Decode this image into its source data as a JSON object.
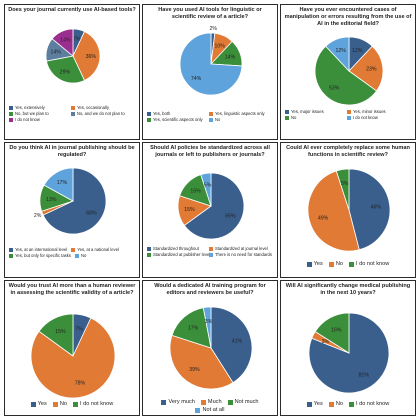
{
  "chart_data": [
    {
      "type": "pie",
      "title": "Does your journal currently use AI-based tools?",
      "categories": [
        "Yes, extensively",
        "Yes, occasionally",
        "No, but we plan to",
        "No, and we do not plan to",
        "I do not know"
      ],
      "values": [
        7,
        36,
        29,
        14,
        14
      ],
      "labels": [
        "7%",
        "36%",
        "29%",
        "14%",
        "14%"
      ],
      "colors": [
        "#3a5f8c",
        "#e07a35",
        "#3b8f3b",
        "#5e7ea0",
        "#9b2f8f"
      ],
      "legend_placement": "bottom"
    },
    {
      "type": "pie",
      "title": "Have you used AI tools for linguistic or scientific review of a article?",
      "categories": [
        "Yes, both",
        "Yes, linguistic aspects only",
        "Yes, scientific aspects only",
        "No"
      ],
      "values": [
        2,
        10,
        14,
        74
      ],
      "labels": [
        "2%",
        "10%",
        "14%",
        "74%"
      ],
      "colors": [
        "#3a5f8c",
        "#e07a35",
        "#3b8f3b",
        "#5fa3dc"
      ],
      "legend_placement": "bottom"
    },
    {
      "type": "pie",
      "title": "Have you ever encountered cases of manipulation or errors resulting from the use of AI in the editorial field?",
      "categories": [
        "Yes, major issues",
        "Yes, minor issues",
        "No",
        "I do not know"
      ],
      "values": [
        12,
        23,
        53,
        12
      ],
      "labels": [
        "12%",
        "23%",
        "53%",
        "12%"
      ],
      "colors": [
        "#3a5f8c",
        "#e07a35",
        "#3b8f3b",
        "#5fa3dc"
      ],
      "legend_placement": "bottom"
    },
    {
      "type": "pie",
      "title": "Do you think AI in journal publishing should be regulated?",
      "categories": [
        "Yes, at an international level",
        "Yes, at a national level",
        "Yes, but only for specific tasks",
        "No"
      ],
      "values": [
        68,
        2,
        13,
        17
      ],
      "labels": [
        "68%",
        "2%",
        "13%",
        "17%"
      ],
      "colors": [
        "#3a5f8c",
        "#e07a35",
        "#3b8f3b",
        "#5fa3dc"
      ],
      "legend_placement": "bottom"
    },
    {
      "type": "pie",
      "title": "Should AI policies be standardized across all journals or left to publishers or journals?",
      "categories": [
        "Standardized throughout",
        "Standardized at journal level",
        "Standardized at publisher level",
        "There is no need for standards"
      ],
      "values": [
        65,
        15,
        15,
        5
      ],
      "labels": [
        "65%",
        "15%",
        "15%",
        "5%"
      ],
      "colors": [
        "#3a5f8c",
        "#e07a35",
        "#3b8f3b",
        "#5fa3dc"
      ],
      "legend_placement": "bottom"
    },
    {
      "type": "pie",
      "title": "Could AI ever completely replace some human functions in scientific review?",
      "categories": [
        "Yes",
        "No",
        "I do not know"
      ],
      "values": [
        46,
        49,
        5
      ],
      "labels": [
        "46%",
        "49%",
        "5%"
      ],
      "colors": [
        "#3a5f8c",
        "#e07a35",
        "#3b8f3b"
      ],
      "legend_placement": "bottom"
    },
    {
      "type": "pie",
      "title": "Would you trust AI more than a human reviewer in assessing the scientific validity of a article?",
      "categories": [
        "Yes",
        "No",
        "I do not know"
      ],
      "values": [
        7,
        78,
        15
      ],
      "labels": [
        "7%",
        "78%",
        "15%"
      ],
      "colors": [
        "#3a5f8c",
        "#e07a35",
        "#3b8f3b"
      ],
      "legend_placement": "bottom"
    },
    {
      "type": "pie",
      "title": "Would a dedicated AI training program for editors and reviewers be useful?",
      "categories": [
        "Very much",
        "Much",
        "Not much",
        "Not at all"
      ],
      "values": [
        41,
        39,
        17,
        3
      ],
      "labels": [
        "41%",
        "39%",
        "17%",
        "3%"
      ],
      "colors": [
        "#3a5f8c",
        "#e07a35",
        "#3b8f3b",
        "#5fa3dc"
      ],
      "legend_placement": "bottom"
    },
    {
      "type": "pie",
      "title": "Will AI significantly change medical publishing in the next 10 years?",
      "categories": [
        "Yes",
        "No",
        "I do not know"
      ],
      "values": [
        81,
        3,
        16
      ],
      "labels": [
        "81%",
        "3%",
        "16%"
      ],
      "colors": [
        "#3a5f8c",
        "#e07a35",
        "#3b8f3b"
      ],
      "legend_placement": "bottom"
    }
  ]
}
